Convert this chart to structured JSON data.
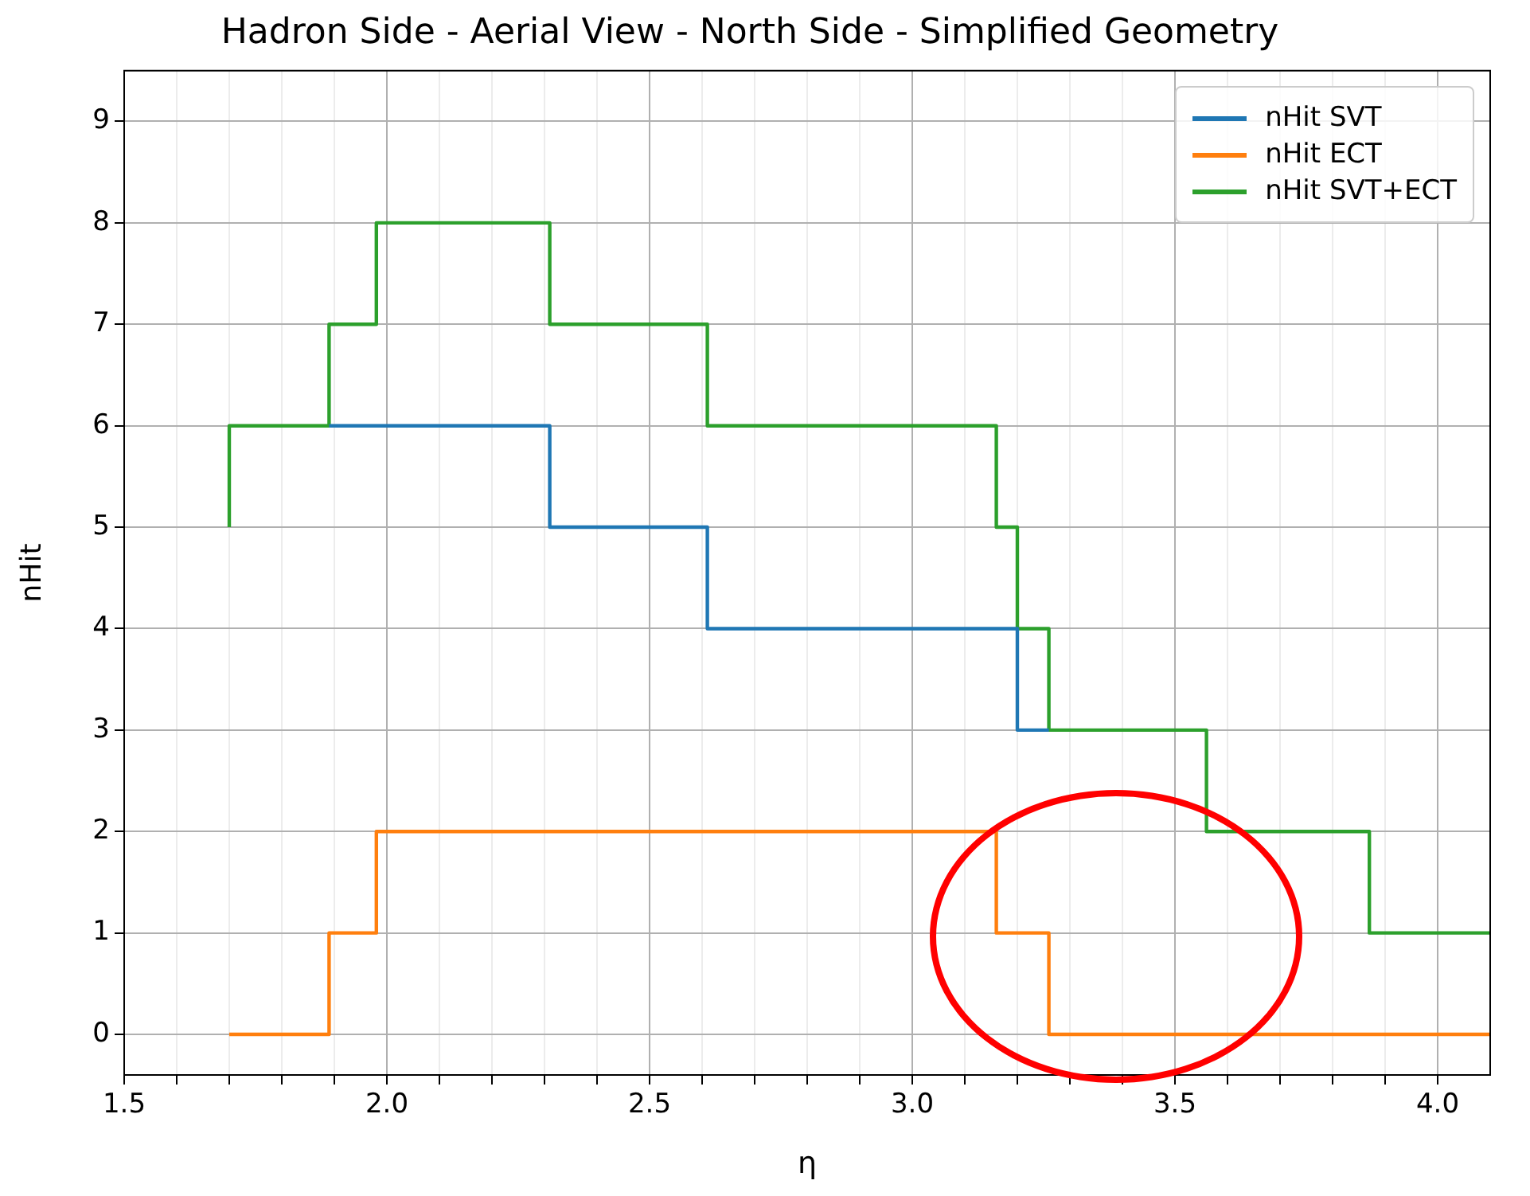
{
  "chart_data": {
    "type": "step",
    "title": "Hadron Side - Aerial View - North Side - Simplified Geometry",
    "xlabel": "η",
    "ylabel": "nHit",
    "xlim": [
      1.5,
      4.1
    ],
    "ylim": [
      -0.4,
      9.5
    ],
    "xticks": [
      1.5,
      {
        "value": 1.6,
        "label": null
      },
      {
        "value": 1.7,
        "label": null
      },
      {
        "value": 1.8,
        "label": null
      },
      {
        "value": 1.9,
        "label": null
      },
      {
        "value": 2.0,
        "label": "2.0"
      },
      {
        "value": 2.1,
        "label": null
      },
      {
        "value": 2.2,
        "label": null
      },
      {
        "value": 2.3,
        "label": null
      },
      {
        "value": 2.4,
        "label": null
      },
      2.5,
      {
        "value": 2.6,
        "label": null
      },
      {
        "value": 2.7,
        "label": null
      },
      {
        "value": 2.8,
        "label": null
      },
      {
        "value": 2.9,
        "label": null
      },
      {
        "value": 3.0,
        "label": "3.0"
      },
      {
        "value": 3.1,
        "label": null
      },
      {
        "value": 3.2,
        "label": null
      },
      {
        "value": 3.3,
        "label": null
      },
      {
        "value": 3.4,
        "label": null
      },
      3.5,
      {
        "value": 3.6,
        "label": null
      },
      {
        "value": 3.7,
        "label": null
      },
      {
        "value": 3.8,
        "label": null
      },
      {
        "value": 3.9,
        "label": null
      },
      {
        "value": 4.0,
        "label": "4.0"
      }
    ],
    "yticks": [
      0,
      1,
      2,
      3,
      4,
      5,
      6,
      7,
      8,
      9
    ],
    "grid": true,
    "legend": "top right",
    "series": [
      {
        "name": "nHit SVT",
        "color": "#1f77b4",
        "x": [
          1.89,
          2.31,
          2.61,
          3.2,
          3.26
        ],
        "values": [
          6,
          5,
          4,
          3,
          3
        ]
      },
      {
        "name": "nHit ECT",
        "color": "#ff7f0e",
        "x": [
          1.7,
          1.89,
          1.98,
          3.16,
          3.26,
          4.1
        ],
        "values": [
          0,
          1,
          2,
          1,
          0,
          0
        ]
      },
      {
        "name": "nHit SVT+ECT",
        "color": "#2ca02c",
        "x": [
          1.7,
          1.7,
          1.89,
          1.98,
          2.31,
          2.61,
          3.16,
          3.2,
          3.26,
          3.56,
          3.87,
          4.1
        ],
        "values": [
          5,
          6,
          7,
          8,
          7,
          6,
          5,
          4,
          3,
          2,
          1,
          1
        ]
      }
    ]
  }
}
